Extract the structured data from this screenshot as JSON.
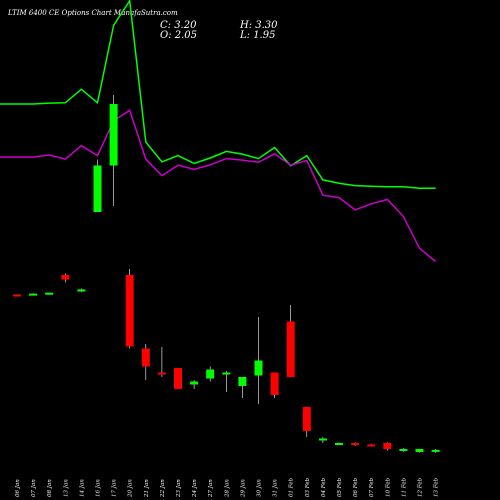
{
  "chart_data": {
    "type": "candlestick",
    "title": "LTIM 6400  CE Options  Chart MunafaSutra.com",
    "ohlc_labels": {
      "c": "C: 3.20",
      "h": "H: 3.30",
      "o": "O: 2.05",
      "l": "L: 1.95"
    },
    "colors": {
      "background": "#000000",
      "up": "#00ff00",
      "down": "#ff0000",
      "text": "#ffffff",
      "line1": "#00ff00",
      "line2": "#cc00cc",
      "wick": "#ffffff"
    },
    "categories": [
      "06 Jan",
      "07 Jan",
      "08 Jan",
      "13 Jan",
      "14 Jan",
      "16 Jan",
      "17 Jan",
      "20 Jan",
      "21 Jan",
      "22 Jan",
      "23 Jan",
      "24 Jan",
      "27 Jan",
      "28 Jan",
      "29 Jan",
      "30 Jan",
      "31 Jan",
      "01 Feb",
      "03 Feb",
      "04 Feb",
      "05 Feb",
      "06 Feb",
      "07 Feb",
      "10 Feb",
      "11 Feb",
      "12 Feb",
      "13 Feb"
    ],
    "candles": [
      {
        "o": 18.5,
        "h": 18.6,
        "l": 18.3,
        "c": 18.4
      },
      {
        "o": 18.8,
        "h": 18.9,
        "l": 18.7,
        "c": 18.8
      },
      {
        "o": 19.0,
        "h": 19.1,
        "l": 18.9,
        "c": 19.1
      },
      {
        "o": 25.0,
        "h": 25.5,
        "l": 22.5,
        "c": 23.5
      },
      {
        "o": 19.5,
        "h": 20.5,
        "l": 19.3,
        "c": 20.2
      },
      {
        "o": 46.0,
        "h": 63.5,
        "l": 46.0,
        "c": 61.5
      },
      {
        "o": 61.5,
        "h": 85.0,
        "l": 48.0,
        "c": 82.0
      },
      {
        "o": 25.0,
        "h": 27.0,
        "l": 0.5,
        "c": 1.2
      },
      {
        "o": 0.5,
        "h": 2.0,
        "l": -10.0,
        "c": -5.5
      },
      {
        "o": -7.5,
        "h": 1.0,
        "l": -9.0,
        "c": -8.0
      },
      {
        "o": -6.0,
        "h": -6.0,
        "l": -13.0,
        "c": -13.0
      },
      {
        "o": -11.5,
        "h": -10.0,
        "l": -13.0,
        "c": -10.5
      },
      {
        "o": -9.5,
        "h": -5.5,
        "l": -10.5,
        "c": -6.5
      },
      {
        "o": -8.0,
        "h": -7.0,
        "l": -14.0,
        "c": -7.5
      },
      {
        "o": -12.0,
        "h": -10.0,
        "l": -16.0,
        "c": -9.0
      },
      {
        "o": -8.5,
        "h": 11.0,
        "l": -18.0,
        "c": -3.5
      },
      {
        "o": -7.5,
        "h": -7.5,
        "l": -16.0,
        "c": -15.0
      },
      {
        "o": 9.5,
        "h": 15.0,
        "l": -9.0,
        "c": -9.0
      },
      {
        "o": -19.0,
        "h": -19.0,
        "l": -29.0,
        "c": -27.0
      },
      {
        "o": -30.0,
        "h": -29.0,
        "l": -31.0,
        "c": -29.5
      },
      {
        "o": -31.0,
        "h": -30.8,
        "l": -31.5,
        "c": -31.0
      },
      {
        "o": -31.0,
        "h": -30.8,
        "l": -32.0,
        "c": -31.5
      },
      {
        "o": -31.5,
        "h": -31.3,
        "l": -32.2,
        "c": -31.8
      },
      {
        "o": -31.0,
        "h": -30.8,
        "l": -33.5,
        "c": -33.0
      },
      {
        "o": -33.5,
        "h": -32.7,
        "l": -33.9,
        "c": -33.0
      },
      {
        "o": -34.0,
        "h": -33.0,
        "l": -34.2,
        "c": -33.0
      },
      {
        "o": -33.6,
        "h": -33.0,
        "l": -34.3,
        "c": -33.3
      }
    ],
    "line1": [
      82,
      82,
      82.3,
      82.4,
      86.9,
      82.4,
      108.2,
      116.4,
      69.3,
      62.7,
      64.8,
      62.2,
      64,
      66.2,
      65.3,
      63.8,
      67.5,
      61.4,
      64.8,
      56.7,
      55.6,
      54.8,
      54.6,
      54.4,
      54.4,
      53.9,
      53.9
    ],
    "line2": [
      64.3,
      64.3,
      65,
      63.6,
      68.1,
      64.8,
      76.4,
      79.9,
      63.6,
      58.1,
      61.6,
      60.2,
      61.7,
      63.8,
      63.3,
      62.6,
      65.4,
      61.6,
      63.2,
      51.6,
      50.8,
      46.7,
      48.7,
      50.2,
      44.5,
      33.9,
      29.5
    ],
    "ylim": [
      -40,
      100
    ]
  }
}
